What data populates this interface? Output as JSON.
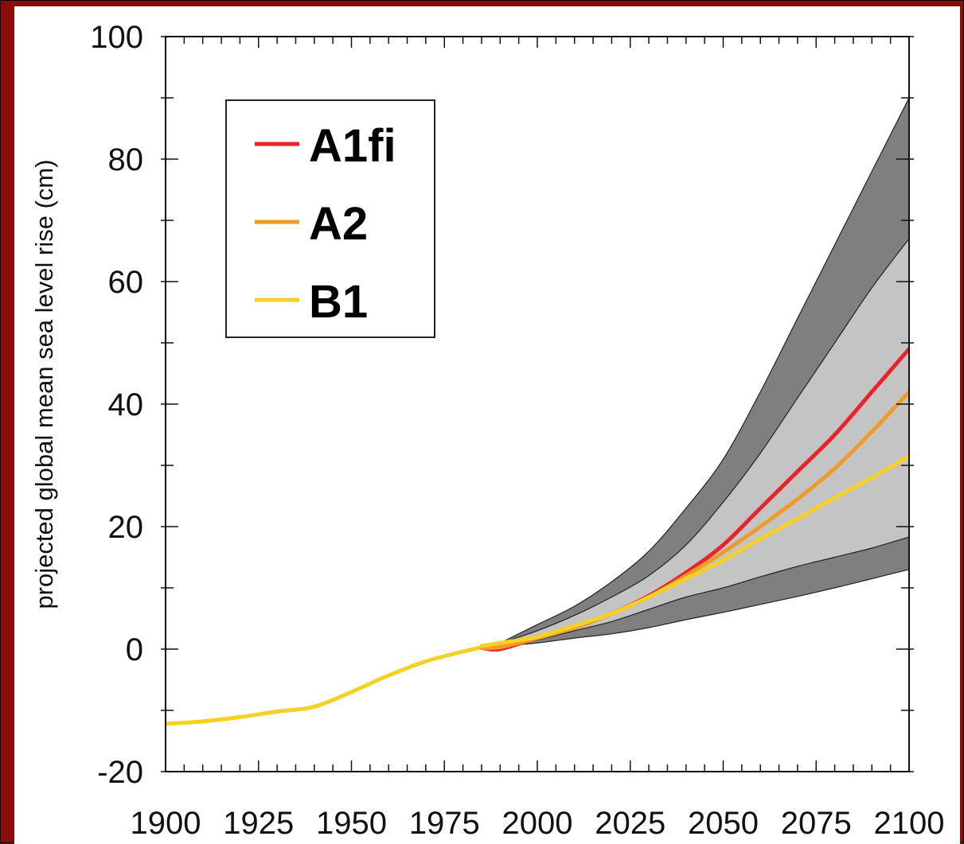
{
  "chart_data": {
    "type": "area",
    "title": "",
    "xlabel": "",
    "ylabel": "projected global mean sea level rise (cm)",
    "xlim": [
      1900,
      2100
    ],
    "ylim": [
      -20,
      100
    ],
    "xticks": [
      1900,
      1925,
      1950,
      1975,
      2000,
      2025,
      2050,
      2075,
      2100
    ],
    "yticks": [
      -20,
      0,
      20,
      40,
      60,
      80,
      100
    ],
    "grid": false,
    "legend": {
      "placement": "top-left",
      "entries": [
        "A1fi",
        "A2",
        "B1"
      ]
    },
    "colors": {
      "A1fi": "#e8232a",
      "A2": "#ef9a29",
      "B1": "#f6d125",
      "outer_band": "#7f7f7f",
      "inner_band": "#c4c4c4",
      "frame": "#8b0d08"
    },
    "bands": [
      {
        "name": "outer range",
        "x": [
          1990,
          2000,
          2010,
          2020,
          2030,
          2040,
          2050,
          2060,
          2070,
          2080,
          2090,
          2100
        ],
        "lower": [
          0.5,
          1.0,
          1.8,
          2.5,
          3.5,
          4.8,
          6.0,
          7.3,
          8.6,
          10.0,
          11.5,
          13.0
        ],
        "upper": [
          1.0,
          4.0,
          7.0,
          11.0,
          16.0,
          23.0,
          31.0,
          42.0,
          54.0,
          66.0,
          78.0,
          90.0
        ]
      },
      {
        "name": "inner range",
        "x": [
          1990,
          2000,
          2010,
          2020,
          2030,
          2040,
          2050,
          2060,
          2070,
          2080,
          2090,
          2100
        ],
        "lower": [
          0.5,
          1.5,
          3.0,
          4.5,
          6.5,
          8.5,
          10.0,
          11.8,
          13.5,
          15.0,
          16.5,
          18.3
        ],
        "upper": [
          1.0,
          3.0,
          5.5,
          8.5,
          12.0,
          17.0,
          24.0,
          32.0,
          41.0,
          50.0,
          59.0,
          67.0
        ]
      }
    ],
    "history": {
      "x": [
        1900,
        1910,
        1920,
        1930,
        1940,
        1950,
        1960,
        1970,
        1980,
        1990
      ],
      "y": [
        -12.2,
        -11.8,
        -11.1,
        -10.2,
        -9.4,
        -7.0,
        -4.3,
        -2.0,
        -0.4,
        1.0
      ]
    },
    "series": [
      {
        "name": "A1fi",
        "x": [
          1985,
          1990,
          2000,
          2010,
          2020,
          2030,
          2040,
          2050,
          2060,
          2070,
          2080,
          2090,
          2100
        ],
        "y": [
          0.2,
          0.0,
          1.8,
          3.5,
          5.8,
          8.7,
          12.5,
          17.0,
          23.0,
          29.0,
          35.0,
          42.0,
          49.0
        ]
      },
      {
        "name": "A2",
        "x": [
          1985,
          1990,
          2000,
          2010,
          2020,
          2030,
          2040,
          2050,
          2060,
          2070,
          2080,
          2090,
          2100
        ],
        "y": [
          0.2,
          0.3,
          1.8,
          3.5,
          5.8,
          8.5,
          12.0,
          15.8,
          20.0,
          24.5,
          29.5,
          35.5,
          42.0
        ]
      },
      {
        "name": "B1",
        "x": [
          1985,
          1990,
          2000,
          2010,
          2020,
          2030,
          2040,
          2050,
          2060,
          2070,
          2080,
          2090,
          2100
        ],
        "y": [
          0.5,
          1.0,
          2.0,
          3.8,
          5.8,
          8.5,
          11.5,
          14.5,
          18.0,
          21.3,
          24.7,
          28.0,
          31.5
        ]
      }
    ]
  }
}
